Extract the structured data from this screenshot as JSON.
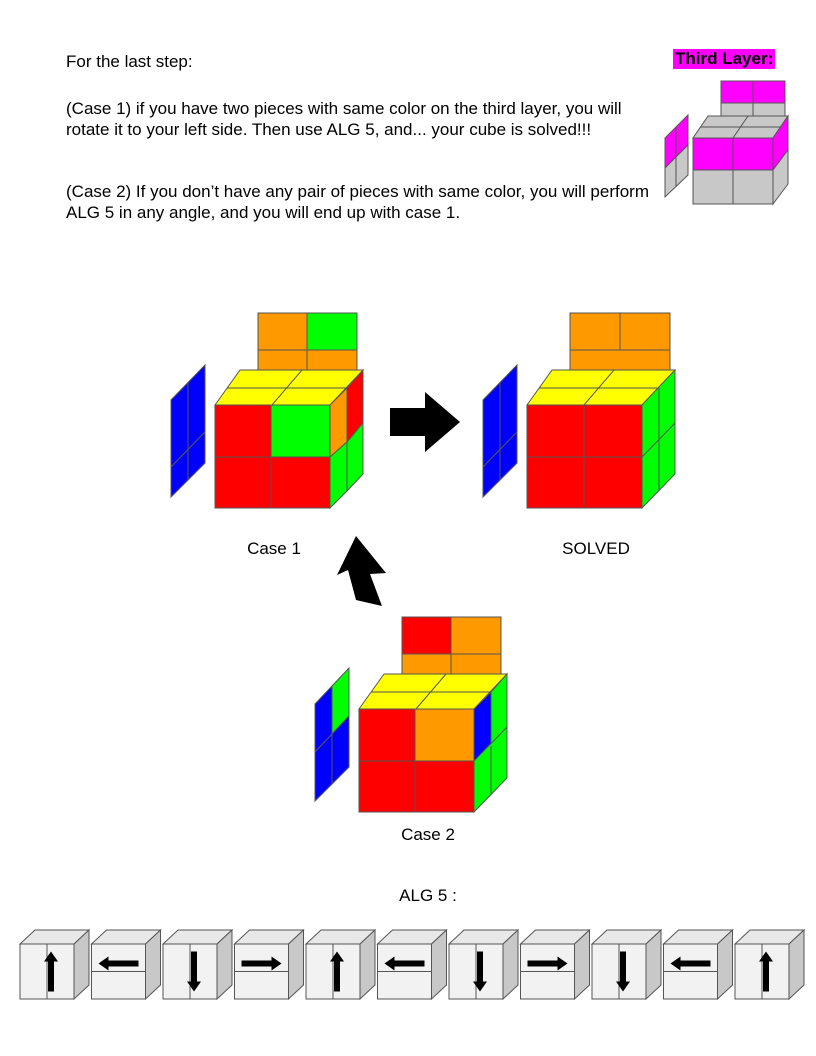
{
  "intro": "For the last step:",
  "case1_text": "(Case 1) if you have two pieces with same color on the third layer, you will rotate it to your left side. Then use ALG 5, and... your cube is solved!!!",
  "case2_text": "(Case 2) If you don’t have any pair of pieces with same color, you will perform ALG 5 in any angle, and you will end up with case 1.",
  "badge": "Third Layer:",
  "labels": {
    "case1": "Case 1",
    "solved": "SOLVED",
    "case2": "Case 2",
    "alg": "ALG 5 :"
  },
  "colors": {
    "red": "#ff0000",
    "orange": "#ff9900",
    "green": "#00ff00",
    "blue": "#0000ff",
    "yellow": "#ffff00",
    "magenta": "#ff00ff",
    "gray": "#c8c8c8"
  },
  "alg_moves": [
    "up-arrow-icon",
    "left-arrow-icon",
    "down-arrow-icon",
    "right-arrow-icon",
    "up-arrow-icon",
    "left-arrow-icon",
    "down-arrow-icon",
    "right-arrow-icon",
    "down-arrow-icon",
    "left-arrow-icon",
    "up-arrow-icon"
  ]
}
